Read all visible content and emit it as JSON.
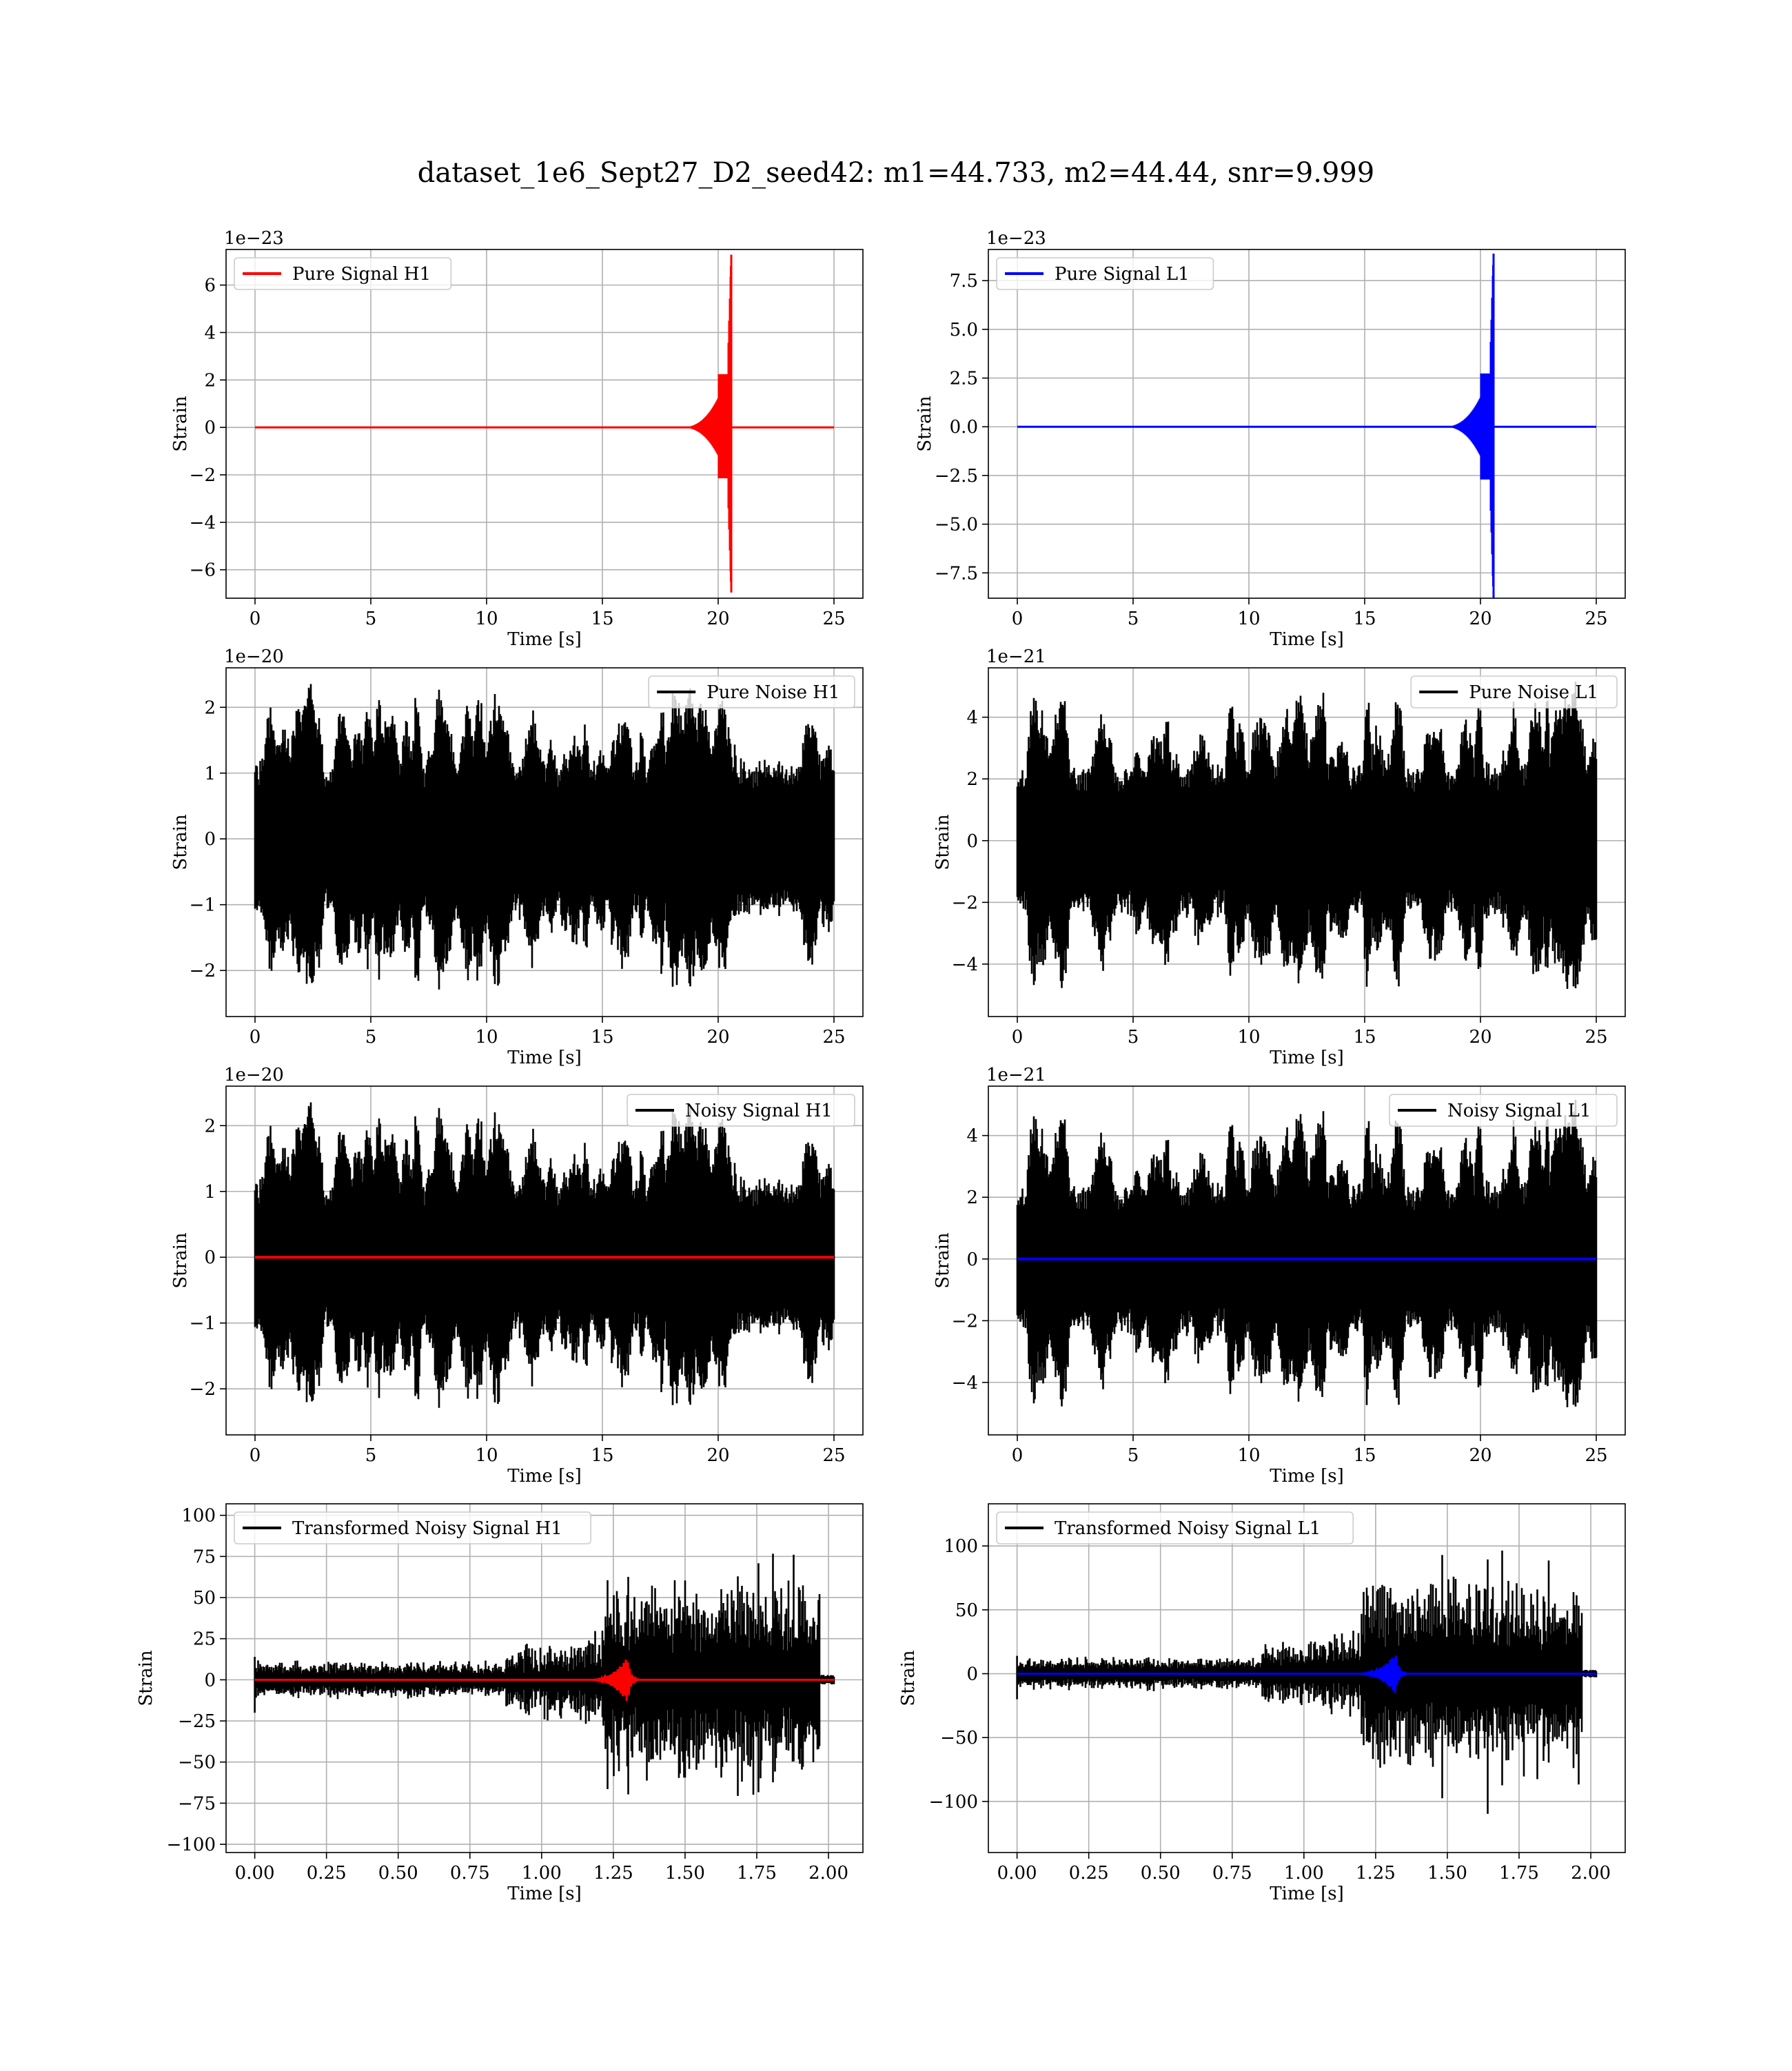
{
  "title": "dataset_1e6_Sept27_D2_seed42: m1=44.733, m2=44.44, snr=9.999",
  "colors": {
    "h1_signal": "#ff0000",
    "l1_signal": "#0000ff",
    "noise": "#000000",
    "grid": "#b0b0b0"
  },
  "chart_data": [
    {
      "id": "pure-signal-h1",
      "type": "line",
      "xlabel": "Time [s]",
      "ylabel": "Strain",
      "offset_text": "1e−23",
      "xlim": [
        -1.25,
        26.25
      ],
      "ylim": [
        -7.2,
        7.5
      ],
      "xticks": [
        0,
        5,
        10,
        15,
        20,
        25
      ],
      "xtick_labels": [
        "0",
        "5",
        "10",
        "15",
        "20",
        "25"
      ],
      "yticks": [
        -6,
        -4,
        -2,
        0,
        2,
        4,
        6
      ],
      "ytick_labels": [
        "−6",
        "−4",
        "−2",
        "0",
        "2",
        "4",
        "6"
      ],
      "grid": true,
      "legend_loc": "upper left",
      "series": [
        {
          "name": "Pure Signal H1",
          "color": "#ff0000",
          "kind": "chirp",
          "x_range": [
            0,
            25
          ],
          "t_merge": 20.55,
          "peak_pos": 6.8,
          "peak_neg": -6.5,
          "ringdown_amp": 0.15,
          "baseline": 0
        }
      ]
    },
    {
      "id": "pure-signal-l1",
      "type": "line",
      "xlabel": "Time [s]",
      "ylabel": "Strain",
      "offset_text": "1e−23",
      "xlim": [
        -1.25,
        26.25
      ],
      "ylim": [
        -8.8,
        9.1
      ],
      "xticks": [
        0,
        5,
        10,
        15,
        20,
        25
      ],
      "xtick_labels": [
        "0",
        "5",
        "10",
        "15",
        "20",
        "25"
      ],
      "yticks": [
        -7.5,
        -5.0,
        -2.5,
        0.0,
        2.5,
        5.0,
        7.5
      ],
      "ytick_labels": [
        "−7.5",
        "−5.0",
        "−2.5",
        "0.0",
        "2.5",
        "5.0",
        "7.5"
      ],
      "grid": true,
      "legend_loc": "upper left",
      "series": [
        {
          "name": "Pure Signal L1",
          "color": "#0000ff",
          "kind": "chirp",
          "x_range": [
            0,
            25
          ],
          "t_merge": 20.55,
          "peak_pos": 8.3,
          "peak_neg": -8.2,
          "ringdown_amp": 0.15,
          "baseline": 0
        }
      ]
    },
    {
      "id": "pure-noise-h1",
      "type": "line",
      "xlabel": "Time [s]",
      "ylabel": "Strain",
      "offset_text": "1e−20",
      "xlim": [
        -1.25,
        26.25
      ],
      "ylim": [
        -2.7,
        2.6
      ],
      "xticks": [
        0,
        5,
        10,
        15,
        20,
        25
      ],
      "xtick_labels": [
        "0",
        "5",
        "10",
        "15",
        "20",
        "25"
      ],
      "yticks": [
        -2,
        -1,
        0,
        1,
        2
      ],
      "ytick_labels": [
        "−2",
        "−1",
        "0",
        "1",
        "2"
      ],
      "grid": true,
      "legend_loc": "upper right",
      "series": [
        {
          "name": "Pure Noise H1",
          "color": "#000000",
          "kind": "noise",
          "x_range": [
            0,
            25
          ],
          "base_amp": 1.25,
          "peak_amp": 2.4,
          "seed": 11
        }
      ]
    },
    {
      "id": "pure-noise-l1",
      "type": "line",
      "xlabel": "Time [s]",
      "ylabel": "Strain",
      "offset_text": "1e−21",
      "xlim": [
        -1.25,
        26.25
      ],
      "ylim": [
        -5.7,
        5.6
      ],
      "xticks": [
        0,
        5,
        10,
        15,
        20,
        25
      ],
      "xtick_labels": [
        "0",
        "5",
        "10",
        "15",
        "20",
        "25"
      ],
      "yticks": [
        -4,
        -2,
        0,
        2,
        4
      ],
      "ytick_labels": [
        "−4",
        "−2",
        "0",
        "2",
        "4"
      ],
      "grid": true,
      "legend_loc": "upper right",
      "series": [
        {
          "name": "Pure Noise L1",
          "color": "#000000",
          "kind": "noise",
          "x_range": [
            0,
            25
          ],
          "base_amp": 2.6,
          "peak_amp": 5.2,
          "seed": 23
        }
      ]
    },
    {
      "id": "noisy-signal-h1",
      "type": "line",
      "xlabel": "Time [s]",
      "ylabel": "Strain",
      "offset_text": "1e−20",
      "xlim": [
        -1.25,
        26.25
      ],
      "ylim": [
        -2.7,
        2.6
      ],
      "xticks": [
        0,
        5,
        10,
        15,
        20,
        25
      ],
      "xtick_labels": [
        "0",
        "5",
        "10",
        "15",
        "20",
        "25"
      ],
      "yticks": [
        -2,
        -1,
        0,
        1,
        2
      ],
      "ytick_labels": [
        "−2",
        "−1",
        "0",
        "1",
        "2"
      ],
      "grid": true,
      "legend_loc": "upper right",
      "series": [
        {
          "name": "Noisy Signal H1",
          "color": "#000000",
          "kind": "noise",
          "x_range": [
            0,
            25
          ],
          "base_amp": 1.25,
          "peak_amp": 2.4,
          "seed": 11
        },
        {
          "color": "#ff0000",
          "kind": "flat",
          "x_range": [
            0,
            25
          ],
          "baseline": 0
        }
      ]
    },
    {
      "id": "noisy-signal-l1",
      "type": "line",
      "xlabel": "Time [s]",
      "ylabel": "Strain",
      "offset_text": "1e−21",
      "xlim": [
        -1.25,
        26.25
      ],
      "ylim": [
        -5.7,
        5.6
      ],
      "xticks": [
        0,
        5,
        10,
        15,
        20,
        25
      ],
      "xtick_labels": [
        "0",
        "5",
        "10",
        "15",
        "20",
        "25"
      ],
      "yticks": [
        -4,
        -2,
        0,
        2,
        4
      ],
      "ytick_labels": [
        "−4",
        "−2",
        "0",
        "2",
        "4"
      ],
      "grid": true,
      "legend_loc": "upper right",
      "series": [
        {
          "name": "Noisy Signal L1",
          "color": "#000000",
          "kind": "noise",
          "x_range": [
            0,
            25
          ],
          "base_amp": 2.6,
          "peak_amp": 5.2,
          "seed": 23
        },
        {
          "color": "#0000ff",
          "kind": "flat",
          "x_range": [
            0,
            25
          ],
          "baseline": 0
        }
      ]
    },
    {
      "id": "transformed-h1",
      "type": "line",
      "xlabel": "Time [s]",
      "ylabel": "Strain",
      "offset_text": "",
      "xlim": [
        -0.1,
        2.12
      ],
      "ylim": [
        -105,
        107
      ],
      "xticks": [
        0,
        0.25,
        0.5,
        0.75,
        1.0,
        1.25,
        1.5,
        1.75,
        2.0
      ],
      "xtick_labels": [
        "0.00",
        "0.25",
        "0.50",
        "0.75",
        "1.00",
        "1.25",
        "1.50",
        "1.75",
        "2.00"
      ],
      "yticks": [
        -100,
        -75,
        -50,
        -25,
        0,
        25,
        50,
        75,
        100
      ],
      "ytick_labels": [
        "−100",
        "−75",
        "−50",
        "−25",
        "0",
        "25",
        "50",
        "75",
        "100"
      ],
      "grid": true,
      "legend_loc": "upper left",
      "series": [
        {
          "name": "Transformed Noisy Signal H1",
          "color": "#000000",
          "kind": "whitened",
          "x_range": [
            0,
            2.02
          ],
          "step_t": 1.22,
          "low_amp": 12,
          "high_amp": 95,
          "end_t": 1.97,
          "seed": 7
        },
        {
          "color": "#ff0000",
          "kind": "burst",
          "x_range": [
            0,
            2.02
          ],
          "t_center": 1.3,
          "amp": 14,
          "baseline": 0
        }
      ]
    },
    {
      "id": "transformed-l1",
      "type": "line",
      "xlabel": "Time [s]",
      "ylabel": "Strain",
      "offset_text": "",
      "xlim": [
        -0.1,
        2.12
      ],
      "ylim": [
        -140,
        133
      ],
      "xticks": [
        0,
        0.25,
        0.5,
        0.75,
        1.0,
        1.25,
        1.5,
        1.75,
        2.0
      ],
      "xtick_labels": [
        "0.00",
        "0.25",
        "0.50",
        "0.75",
        "1.00",
        "1.25",
        "1.50",
        "1.75",
        "2.00"
      ],
      "yticks": [
        -100,
        -50,
        0,
        50,
        100
      ],
      "ytick_labels": [
        "−100",
        "−50",
        "0",
        "50",
        "100"
      ],
      "grid": true,
      "legend_loc": "upper left",
      "series": [
        {
          "name": "Transformed Noisy Signal L1",
          "color": "#000000",
          "kind": "whitened",
          "x_range": [
            0,
            2.02
          ],
          "step_t": 1.2,
          "low_amp": 14,
          "high_amp": 115,
          "end_t": 1.97,
          "seed": 19
        },
        {
          "color": "#0000ff",
          "kind": "burst",
          "x_range": [
            0,
            2.02
          ],
          "t_center": 1.32,
          "amp": 16,
          "baseline": 0
        }
      ]
    }
  ]
}
